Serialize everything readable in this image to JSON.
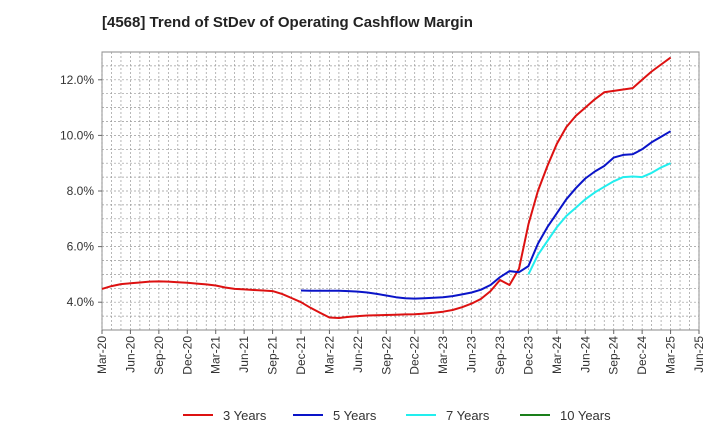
{
  "title": "[4568]  Trend of StDev of Operating Cashflow Margin",
  "chart_data": {
    "type": "line",
    "title": "[4568]  Trend of StDev of Operating Cashflow Margin",
    "x_ticks": [
      "Mar-20",
      "Jun-20",
      "Sep-20",
      "Dec-20",
      "Mar-21",
      "Jun-21",
      "Sep-21",
      "Dec-21",
      "Mar-22",
      "Jun-22",
      "Sep-22",
      "Dec-22",
      "Mar-23",
      "Jun-23",
      "Sep-23",
      "Dec-23",
      "Mar-24",
      "Jun-24",
      "Sep-24",
      "Dec-24",
      "Mar-25",
      "Jun-25"
    ],
    "y_ticks": [
      "4.0%",
      "6.0%",
      "8.0%",
      "10.0%",
      "12.0%"
    ],
    "y_tick_values": [
      4,
      6,
      8,
      10,
      12
    ],
    "ylim": [
      3.0,
      13.0
    ],
    "grid": true,
    "legend_position": "bottom",
    "series": [
      {
        "name": "3 Years",
        "color": "#dd1111",
        "x": [
          "Mar-20",
          "Apr-20",
          "May-20",
          "Jun-20",
          "Jul-20",
          "Aug-20",
          "Sep-20",
          "Oct-20",
          "Nov-20",
          "Dec-20",
          "Jan-21",
          "Feb-21",
          "Mar-21",
          "Apr-21",
          "May-21",
          "Jun-21",
          "Jul-21",
          "Aug-21",
          "Sep-21",
          "Oct-21",
          "Nov-21",
          "Dec-21",
          "Jan-22",
          "Feb-22",
          "Mar-22",
          "Apr-22",
          "May-22",
          "Jun-22",
          "Jul-22",
          "Aug-22",
          "Sep-22",
          "Oct-22",
          "Nov-22",
          "Dec-22",
          "Jan-23",
          "Feb-23",
          "Mar-23",
          "Apr-23",
          "May-23",
          "Jun-23",
          "Jul-23",
          "Aug-23",
          "Sep-23",
          "Oct-23",
          "Nov-23",
          "Dec-23",
          "Jan-24",
          "Feb-24",
          "Mar-24",
          "Apr-24",
          "May-24",
          "Jun-24",
          "Jul-24",
          "Aug-24",
          "Sep-24",
          "Oct-24",
          "Nov-24",
          "Dec-24",
          "Jan-25",
          "Feb-25",
          "Mar-25"
        ],
        "values": [
          4.48,
          4.58,
          4.65,
          4.68,
          4.71,
          4.74,
          4.75,
          4.74,
          4.72,
          4.7,
          4.67,
          4.64,
          4.6,
          4.53,
          4.48,
          4.46,
          4.44,
          4.42,
          4.4,
          4.3,
          4.15,
          4.0,
          3.8,
          3.62,
          3.45,
          3.43,
          3.47,
          3.5,
          3.52,
          3.53,
          3.54,
          3.55,
          3.56,
          3.57,
          3.59,
          3.62,
          3.66,
          3.72,
          3.82,
          3.95,
          4.12,
          4.4,
          4.8,
          4.62,
          5.2,
          6.8,
          8.0,
          8.9,
          9.7,
          10.3,
          10.7,
          11.0,
          11.3,
          11.55,
          11.6,
          11.65,
          11.7,
          12.0,
          12.3,
          12.55,
          12.8
        ]
      },
      {
        "name": "5 Years",
        "color": "#0a14c8",
        "x": [
          "Dec-21",
          "Jan-22",
          "Feb-22",
          "Mar-22",
          "Apr-22",
          "May-22",
          "Jun-22",
          "Jul-22",
          "Aug-22",
          "Sep-22",
          "Oct-22",
          "Nov-22",
          "Dec-22",
          "Jan-23",
          "Feb-23",
          "Mar-23",
          "Apr-23",
          "May-23",
          "Jun-23",
          "Jul-23",
          "Aug-23",
          "Sep-23",
          "Oct-23",
          "Nov-23",
          "Dec-23",
          "Jan-24",
          "Feb-24",
          "Mar-24",
          "Apr-24",
          "May-24",
          "Jun-24",
          "Jul-24",
          "Aug-24",
          "Sep-24",
          "Oct-24",
          "Nov-24",
          "Dec-24",
          "Jan-25",
          "Feb-25",
          "Mar-25"
        ],
        "values": [
          4.42,
          4.41,
          4.41,
          4.41,
          4.41,
          4.4,
          4.38,
          4.35,
          4.3,
          4.24,
          4.18,
          4.14,
          4.13,
          4.14,
          4.16,
          4.18,
          4.22,
          4.28,
          4.35,
          4.45,
          4.62,
          4.9,
          5.12,
          5.08,
          5.3,
          6.1,
          6.7,
          7.2,
          7.7,
          8.1,
          8.45,
          8.7,
          8.9,
          9.2,
          9.3,
          9.32,
          9.5,
          9.75,
          9.95,
          10.15
        ]
      },
      {
        "name": "7 Years",
        "color": "#22eeee",
        "x": [
          "Dec-23",
          "Jan-24",
          "Feb-24",
          "Mar-24",
          "Apr-24",
          "May-24",
          "Jun-24",
          "Jul-24",
          "Aug-24",
          "Sep-24",
          "Oct-24",
          "Nov-24",
          "Dec-24",
          "Jan-25",
          "Feb-25",
          "Mar-25"
        ],
        "values": [
          5.0,
          5.7,
          6.2,
          6.7,
          7.1,
          7.4,
          7.7,
          7.95,
          8.15,
          8.35,
          8.5,
          8.52,
          8.5,
          8.65,
          8.85,
          9.0
        ]
      },
      {
        "name": "10 Years",
        "color": "#1a7f1a",
        "x": [],
        "values": []
      }
    ]
  }
}
